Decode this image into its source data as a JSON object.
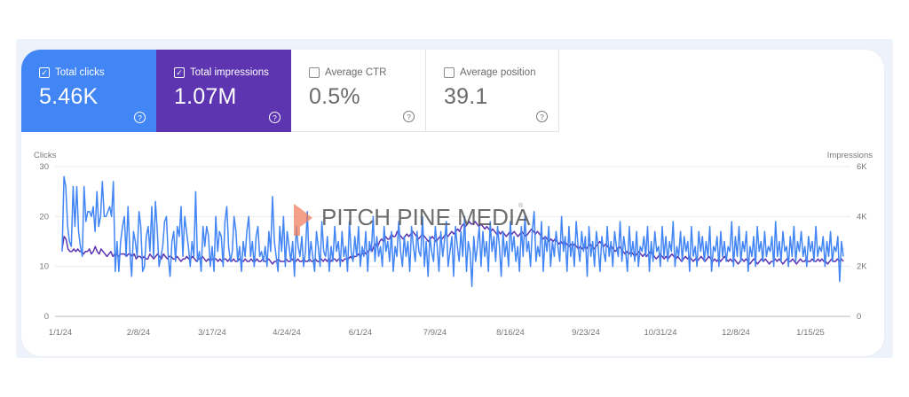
{
  "metrics": [
    {
      "label": "Total clicks",
      "value": "5.46K",
      "checked": true,
      "color": "#4285f4",
      "help_icon": "help-circle-icon"
    },
    {
      "label": "Total impressions",
      "value": "1.07M",
      "checked": true,
      "color": "#5e35b1",
      "help_icon": "help-circle-icon"
    },
    {
      "label": "Average CTR",
      "value": "0.5%",
      "checked": false,
      "help_icon": "help-circle-icon"
    },
    {
      "label": "Average position",
      "value": "39.1",
      "checked": false,
      "help_icon": "help-circle-icon"
    }
  ],
  "checkbox_glyph": "✓",
  "help_glyph": "?",
  "watermark": {
    "text": "PITCH PINE MEDIA",
    "logo_color": "#f08060",
    "mark": "®"
  },
  "chart_data": {
    "type": "line",
    "title": "",
    "xlabel": "",
    "ylabel_left": "Clicks",
    "ylabel_right": "Impressions",
    "left_axis": {
      "ylim": [
        0,
        30
      ],
      "ticks": [
        "0",
        "10",
        "20",
        "30"
      ]
    },
    "right_axis": {
      "ylim": [
        0,
        6000
      ],
      "ticks": [
        "0",
        "2K",
        "4K",
        "6K"
      ]
    },
    "x_range": [
      "1/1/24",
      "2/1/25"
    ],
    "x_tick_labels": [
      "1/1/24",
      "2/8/24",
      "3/17/24",
      "4/24/24",
      "6/1/24",
      "7/9/24",
      "8/16/24",
      "9/23/24",
      "10/31/24",
      "12/8/24",
      "1/15/25"
    ],
    "grid": true,
    "legend": "none",
    "series": [
      {
        "name": "Clicks",
        "axis": "left",
        "color": "#4285f4",
        "values": [
          13,
          28,
          26,
          18,
          15,
          14,
          26,
          18,
          26,
          17,
          14,
          12,
          26,
          19,
          21,
          21,
          20,
          22,
          17,
          25,
          18,
          20,
          27,
          20,
          20,
          21,
          22,
          20,
          27,
          9,
          15,
          9,
          15,
          18,
          20,
          12,
          22,
          13,
          8,
          17,
          15,
          12,
          21,
          18,
          9,
          10,
          16,
          18,
          13,
          22,
          12,
          23,
          17,
          10,
          12,
          14,
          19,
          20,
          12,
          8,
          15,
          17,
          11,
          18,
          16,
          22,
          12,
          20,
          17,
          14,
          10,
          15,
          12,
          25,
          11,
          13,
          9,
          18,
          14,
          18,
          16,
          10,
          14,
          9,
          20,
          13,
          17,
          16,
          10,
          19,
          22,
          14,
          11,
          13,
          20,
          17,
          11,
          14,
          9,
          15,
          12,
          17,
          20,
          12,
          15,
          10,
          16,
          18,
          12,
          13,
          11,
          14,
          10,
          17,
          13,
          24,
          15,
          12,
          9,
          18,
          13,
          20,
          10,
          17,
          14,
          11,
          15,
          8,
          18,
          14,
          12,
          16,
          10,
          13,
          21,
          11,
          15,
          12,
          9,
          17,
          14,
          10,
          19,
          13,
          12,
          16,
          9,
          14,
          11,
          18,
          13,
          15,
          10,
          17,
          12,
          14,
          9,
          19,
          13,
          11,
          16,
          12,
          18,
          10,
          14,
          12,
          17,
          9,
          15,
          13,
          20,
          11,
          16,
          12,
          14,
          10,
          18,
          13,
          15,
          11,
          17,
          9,
          14,
          12,
          19,
          13,
          10,
          16,
          12,
          15,
          9,
          18,
          14,
          11,
          17,
          13,
          12,
          20,
          10,
          15,
          8,
          16,
          13,
          11,
          18,
          14,
          9,
          17,
          12,
          15,
          19,
          10,
          13,
          16,
          8,
          18,
          14,
          11,
          17,
          12,
          20,
          9,
          15,
          13,
          6,
          16,
          11,
          14,
          18,
          10,
          17,
          12,
          15,
          9,
          19,
          13,
          16,
          11,
          18,
          14,
          8,
          17,
          12,
          15,
          10,
          19,
          13,
          16,
          11,
          14,
          9,
          18,
          12,
          20,
          13,
          15,
          10,
          17,
          21,
          11,
          14,
          12,
          19,
          9,
          16,
          13,
          18,
          10,
          15,
          12,
          17,
          14,
          11,
          20,
          13,
          16,
          9,
          18,
          12,
          15,
          10,
          19,
          14,
          11,
          17,
          13,
          16,
          8,
          18,
          12,
          15,
          10,
          17,
          14,
          9,
          16,
          13,
          11,
          18,
          12,
          15,
          10,
          17,
          14,
          12,
          19,
          11,
          16,
          13,
          9,
          18,
          12,
          15,
          11,
          17,
          10,
          14,
          13,
          16,
          12,
          18,
          9,
          15,
          11,
          17,
          13,
          14,
          10,
          18,
          12,
          16,
          11,
          15,
          13,
          19,
          10,
          14,
          12,
          17,
          11,
          16,
          13,
          15,
          9,
          18,
          12,
          14,
          10,
          17,
          13,
          16,
          11,
          15,
          12,
          18,
          9,
          14,
          13,
          16,
          10,
          17,
          12,
          15,
          11,
          14,
          13,
          19,
          10,
          16,
          12,
          18,
          11,
          15,
          13,
          17,
          9,
          14,
          12,
          16,
          10,
          18,
          13,
          15,
          11,
          17,
          12,
          14,
          13,
          16,
          10,
          19,
          12,
          15,
          11,
          17,
          13,
          14,
          10,
          16,
          12,
          18,
          11,
          15,
          13,
          17,
          12,
          14,
          10,
          16,
          13,
          15,
          11,
          18,
          12,
          14,
          13,
          16,
          10,
          15,
          12,
          17,
          11,
          14,
          13,
          16,
          7,
          15,
          12
        ]
      },
      {
        "name": "Impressions",
        "axis": "right",
        "color": "#5e35b1",
        "values": [
          2700,
          3200,
          3100,
          2700,
          2600,
          2600,
          2700,
          2600,
          2700,
          2600,
          2600,
          2500,
          2600,
          2600,
          2700,
          2500,
          2600,
          2800,
          2600,
          2500,
          2700,
          2600,
          2500,
          2400,
          2500,
          2600,
          2400,
          2500,
          2500,
          2400,
          2500,
          2500,
          2500,
          2400,
          2500,
          2500,
          2400,
          2500,
          2300,
          2400,
          2400,
          2300,
          2400,
          2300,
          2300,
          2500,
          2400,
          2300,
          2400,
          2500,
          2400,
          2300,
          2500,
          2400,
          2300,
          2400,
          2400,
          2300,
          2300,
          2400,
          2300,
          2200,
          2300,
          2300,
          2400,
          2300,
          2300,
          2400,
          2300,
          2200,
          2300,
          2300,
          2400,
          2300,
          2200,
          2300,
          2200,
          2300,
          2300,
          2300,
          2200,
          2300,
          2200,
          2300,
          2300,
          2200,
          2300,
          2200,
          2300,
          2200,
          2200,
          2300,
          2200,
          2200,
          2300,
          2200,
          2200,
          2300,
          2200,
          2200,
          2300,
          2200,
          2200,
          2300,
          2200,
          2200,
          2300,
          2200,
          2100,
          2200,
          2200,
          2300,
          2200,
          2200,
          2200,
          2300,
          2200,
          2200,
          2300,
          2200,
          2200,
          2300,
          2200,
          2200,
          2300,
          2200,
          2200,
          2300,
          2200,
          2200,
          2300,
          2200,
          2200,
          2300,
          2200,
          2300,
          2200,
          2300,
          2200,
          2300,
          2300,
          2200,
          2300,
          2300,
          2200,
          2300,
          2300,
          2300,
          2400,
          2300,
          2400,
          2400,
          2500,
          2400,
          2500,
          2600,
          2500,
          2600,
          2700,
          2600,
          2800,
          2900,
          2800,
          3000,
          3100,
          3000,
          3200,
          3100,
          3100,
          3300,
          3200,
          3200,
          3400,
          3300,
          3200,
          3100,
          3200,
          3300,
          3200,
          3300,
          3400,
          3300,
          3200,
          3100,
          3200,
          3300,
          3200,
          3100,
          3000,
          3100,
          3200,
          3100,
          3000,
          3100,
          3200,
          3100,
          3200,
          3300,
          3200,
          3300,
          3400,
          3300,
          3400,
          3500,
          3400,
          3600,
          3700,
          3600,
          3700,
          3800,
          3700,
          3700,
          3800,
          3700,
          3600,
          3700,
          3600,
          3500,
          3600,
          3500,
          3400,
          3500,
          3400,
          3300,
          3400,
          3300,
          3400,
          3300,
          3200,
          3300,
          3400,
          3300,
          3400,
          3300,
          3200,
          3300,
          3400,
          3300,
          3200,
          3300,
          3400,
          3500,
          3400,
          3300,
          3400,
          3300,
          3200,
          3100,
          3200,
          3100,
          3000,
          3100,
          3000,
          3100,
          3000,
          2900,
          3000,
          2900,
          3000,
          2900,
          2800,
          2900,
          2800,
          2900,
          2800,
          2700,
          2800,
          2700,
          2800,
          2700,
          2800,
          2900,
          2800,
          2700,
          2800,
          2900,
          3000,
          2900,
          2800,
          2900,
          2800,
          2700,
          2800,
          2700,
          2600,
          2700,
          2800,
          2700,
          2600,
          2500,
          2600,
          2500,
          2600,
          2500,
          2400,
          2500,
          2600,
          2500,
          2400,
          2500,
          2400,
          2500,
          2600,
          2500,
          2400,
          2300,
          2400,
          2500,
          2400,
          2300,
          2400,
          2300,
          2400,
          2500,
          2400,
          2300,
          2400,
          2300,
          2200,
          2300,
          2400,
          2300,
          2400,
          2300,
          2200,
          2300,
          2200,
          2300,
          2400,
          2300,
          2200,
          2300,
          2400,
          2300,
          2200,
          2300,
          2200,
          2300,
          2200,
          2300,
          2400,
          2300,
          2200,
          2300,
          2200,
          2300,
          2200,
          2100,
          2200,
          2300,
          2200,
          2300,
          2200,
          2100,
          2200,
          2300,
          2200,
          2100,
          2200,
          2300,
          2200,
          2300,
          2200,
          2100,
          2200,
          2200,
          2300,
          2200,
          2300,
          2200,
          2100,
          2200,
          2300,
          2200,
          2200,
          2300,
          2200,
          2100,
          2200,
          2300,
          2200,
          2200,
          2300,
          2200,
          2200,
          2300,
          2200,
          2200,
          2300,
          2200,
          2300,
          2200,
          2200,
          2100,
          2200,
          2300,
          2200,
          2200,
          2300,
          2200,
          2300,
          2200
        ]
      }
    ]
  }
}
